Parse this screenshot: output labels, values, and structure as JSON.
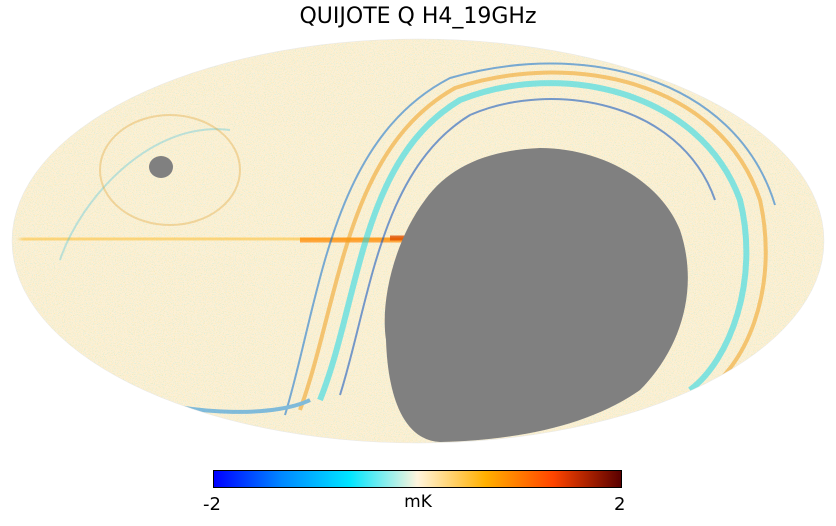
{
  "title": "QUIJOTE Q H4_19GHz",
  "colorbar": {
    "min_label": "-2",
    "max_label": "2",
    "unit": "mK",
    "range": [
      -2,
      2
    ],
    "colormap": [
      "#0000ff",
      "#0088ff",
      "#00e5ff",
      "#fff5dd",
      "#ffb000",
      "#ff4500",
      "#5a0000"
    ]
  },
  "projection": "mollweide",
  "mask_color": "#808080",
  "background_color": "#ffffff"
}
